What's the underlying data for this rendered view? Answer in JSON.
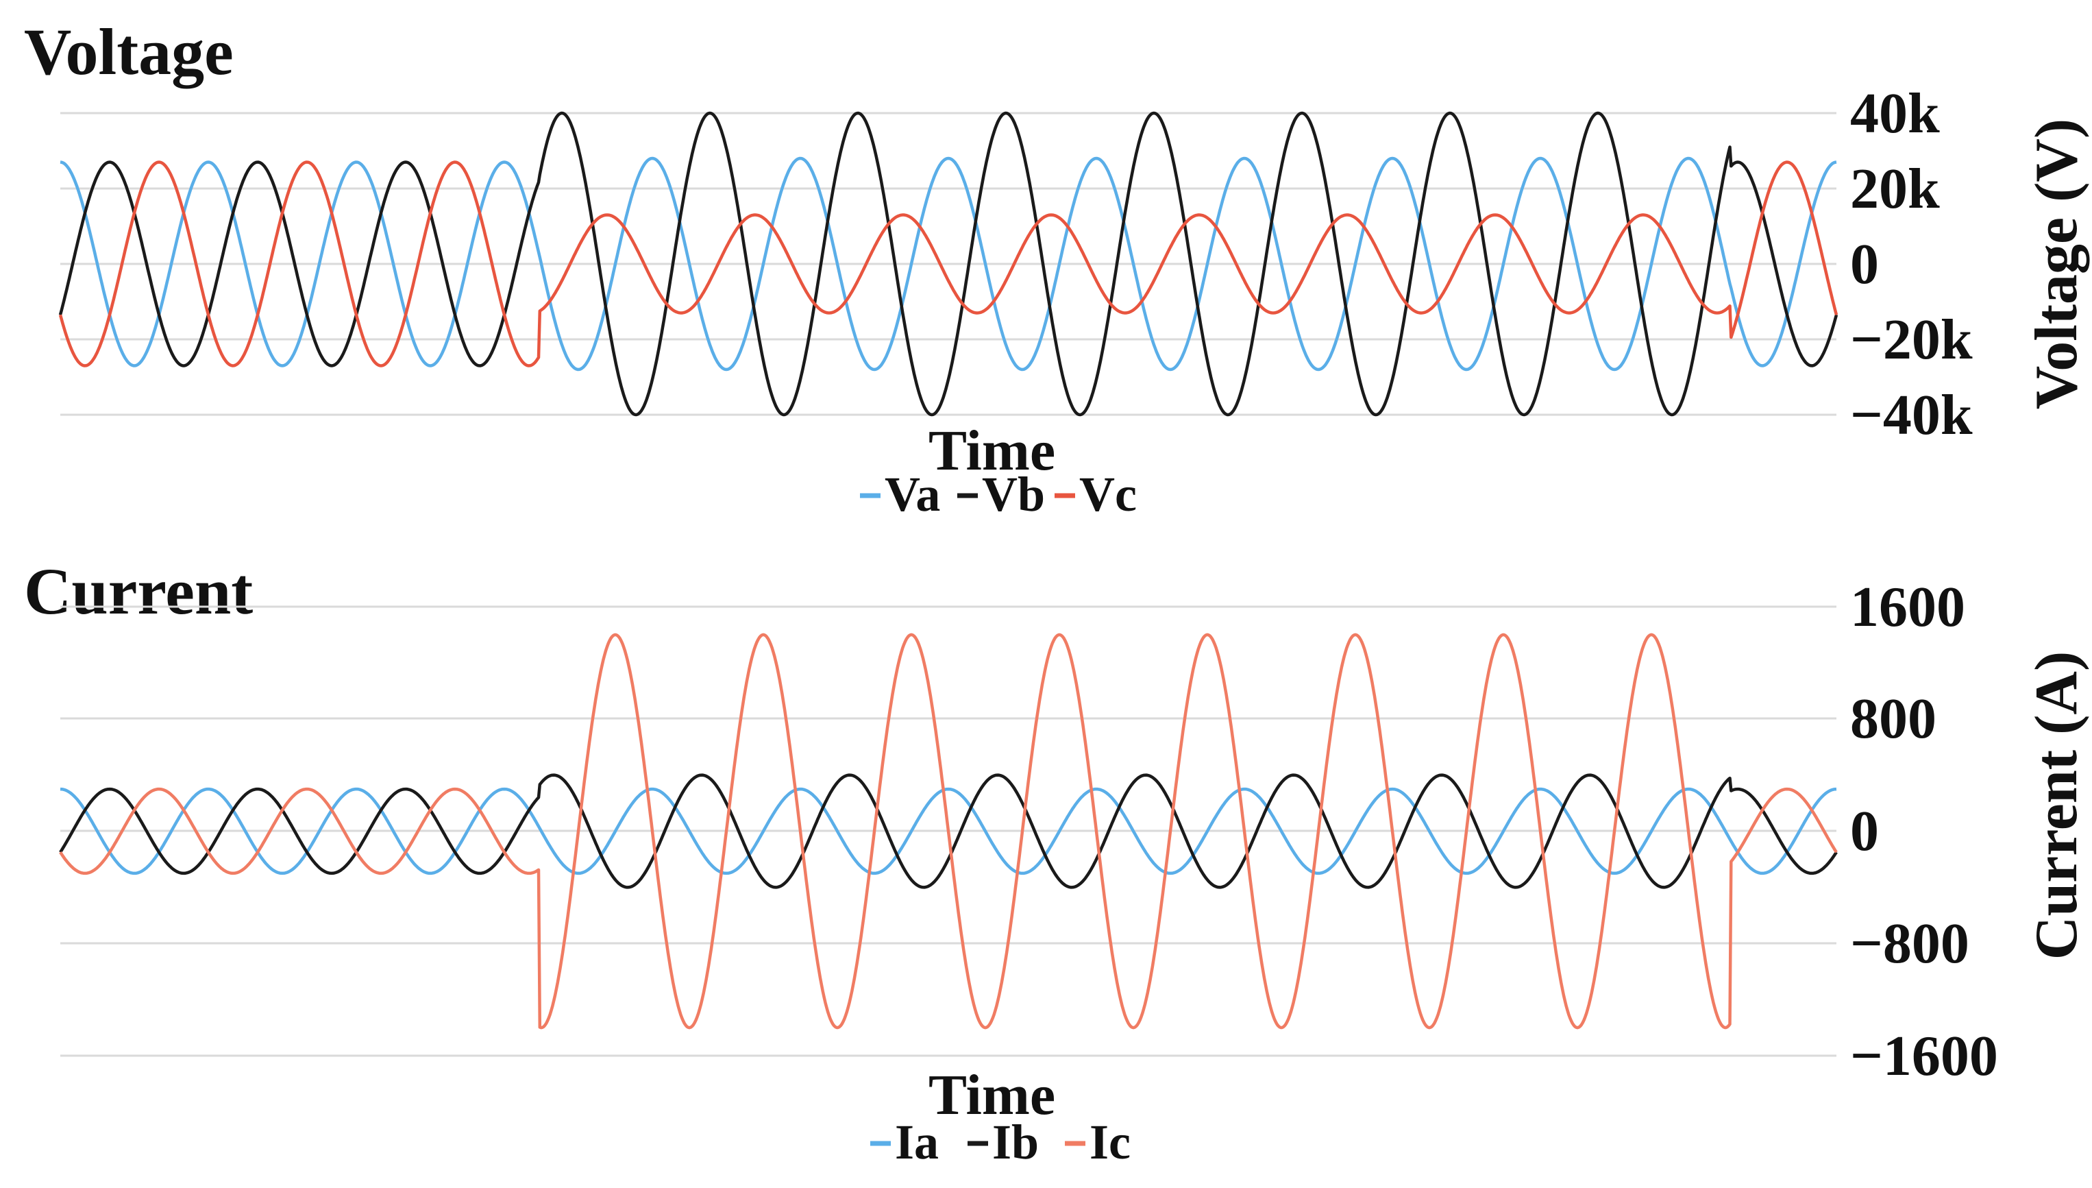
{
  "chart_data": [
    {
      "type": "line",
      "title": "Voltage",
      "xlabel": "Time",
      "ylabel": "Voltage (V)",
      "ylim": [
        -40000,
        40000
      ],
      "yticks": [
        "40k",
        "20k",
        "0",
        "−20k",
        "−40k"
      ],
      "grid": true,
      "legend_position": "bottom",
      "fault_onset_fraction": 0.27,
      "series": [
        {
          "name": "Va",
          "color": "#5aaee8",
          "pre_amplitude": 27000,
          "post_amplitude": 28000,
          "phase_deg": 90,
          "post_phase_deg": 90
        },
        {
          "name": "Vb",
          "color": "#1a1a1a",
          "pre_amplitude": 27000,
          "post_amplitude": 40000,
          "phase_deg": -30,
          "post_phase_deg": -50
        },
        {
          "name": "Vc",
          "color": "#e8553f",
          "pre_amplitude": 27000,
          "post_amplitude": 13000,
          "phase_deg": 210,
          "post_phase_deg": 200
        }
      ],
      "cycles": 12
    },
    {
      "type": "line",
      "title": "Current",
      "xlabel": "Time",
      "ylabel": "Current (A)",
      "ylim": [
        -1600,
        1600
      ],
      "yticks": [
        "1600",
        "800",
        "0",
        "−800",
        "−1600"
      ],
      "grid": true,
      "legend_position": "bottom",
      "fault_onset_fraction": 0.27,
      "series": [
        {
          "name": "Ia",
          "color": "#5aaee8",
          "pre_amplitude": 300,
          "post_amplitude": 300,
          "phase_deg": 90,
          "post_phase_deg": 90
        },
        {
          "name": "Ib",
          "color": "#1a1a1a",
          "pre_amplitude": 300,
          "post_amplitude": 400,
          "phase_deg": -30,
          "post_phase_deg": -30
        },
        {
          "name": "Ic",
          "color": "#f07c63",
          "pre_amplitude": 300,
          "post_amplitude": 1400,
          "phase_deg": 210,
          "post_phase_deg": 180
        }
      ],
      "cycles": 12
    }
  ]
}
